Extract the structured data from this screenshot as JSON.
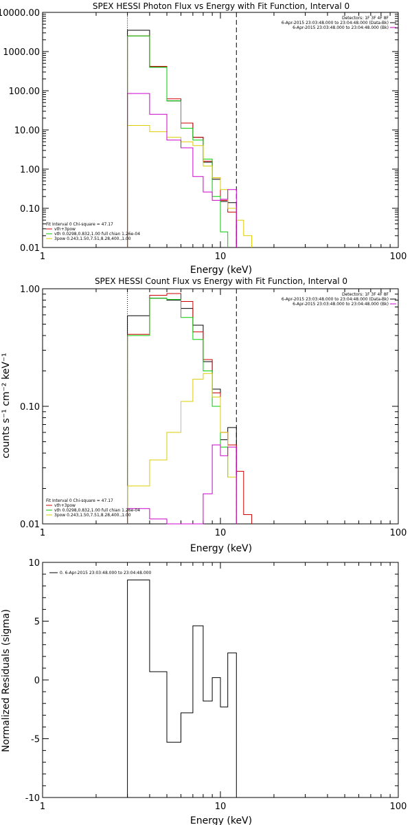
{
  "chart_data": [
    {
      "type": "line",
      "title": "SPEX HESSI Photon Flux vs Energy with Fit Function, Interval 0",
      "xlabel": "Energy (keV)",
      "ylabel": "",
      "xscale": "log",
      "yscale": "log",
      "xlim": [
        1,
        100
      ],
      "ylim": [
        0.01,
        10000
      ],
      "x_ticks": [
        "1",
        "10",
        "100"
      ],
      "y_ticks": [
        "0.01",
        "0.10",
        "1.00",
        "10.00",
        "100.00",
        "1000.00",
        "10000.00"
      ],
      "vlines": [
        {
          "x": 3,
          "style": "dotted"
        },
        {
          "x": 12.3,
          "style": "dashed"
        }
      ],
      "legend_top": [
        "Detectors: 1F 3F 4F 8F",
        "6-Apr-2015 23:03:48.000 to 23:04:48.000 (Data-Bk)",
        "6-Apr-2015 23:03:48.000 to 23:04:48.000 (Bk)"
      ],
      "legend_top_colors": [
        "#000000",
        "#000000",
        "#cc00cc"
      ],
      "legend_bottom": [
        "Fit Interval 0   Chi-square = 47.17",
        "vth+3pow",
        "vth 0.0298,0.832,1.00  full chian 1.26e-04",
        "3pow 0.243,1.50,7.51,8.28,400.,1.00"
      ],
      "legend_bottom_colors": [
        "",
        "#cc0000",
        "#00cc00",
        "#ddcc00"
      ],
      "series": [
        {
          "name": "6-Apr-2015 23:03:48.000 to 23:04:48.000 (Data-Bk)",
          "color": "#000000",
          "edges": [
            3,
            4,
            5,
            6,
            7,
            8,
            9,
            10,
            11,
            12.3
          ],
          "values": [
            3500,
            400,
            55,
            15,
            6.5,
            1.5,
            0.55,
            0.15,
            0.14
          ]
        },
        {
          "name": "vth+3pow",
          "color": "#cc0000",
          "edges": [
            3,
            4,
            5,
            6,
            7,
            8,
            9,
            10,
            11,
            12.3
          ],
          "values": [
            2500,
            420,
            62,
            15,
            6.5,
            1.6,
            0.6,
            0.16,
            0.08
          ]
        },
        {
          "name": "vth",
          "color": "#00cc00",
          "edges": [
            3,
            4,
            5,
            6,
            7,
            8,
            9,
            10,
            11
          ],
          "values": [
            2500,
            400,
            55,
            11,
            5.5,
            1.8,
            0.2,
            0.025
          ]
        },
        {
          "name": "3pow",
          "color": "#ddcc00",
          "edges": [
            3,
            4,
            5,
            6,
            7,
            8,
            9,
            10,
            11,
            12.3,
            13.5,
            15
          ],
          "values": [
            13,
            9,
            6.5,
            5,
            4,
            1.2,
            0.6,
            0.3,
            0.1,
            0.05,
            0.02
          ]
        },
        {
          "name": "6-Apr-2015 23:03:48.000 to 23:04:48.000 (Bk)",
          "color": "#cc00cc",
          "edges": [
            3,
            4,
            5,
            6,
            7,
            8,
            9,
            10,
            11,
            12.3
          ],
          "values": [
            85,
            25,
            5.5,
            3.5,
            0.65,
            0.26,
            0.16,
            0.17,
            0.3
          ]
        }
      ]
    },
    {
      "type": "line",
      "title": "SPEX HESSI Count Flux vs Energy with Fit Function, Interval 0",
      "xlabel": "Energy (keV)",
      "ylabel": "counts s⁻¹ cm⁻² keV⁻¹",
      "xscale": "log",
      "yscale": "log",
      "xlim": [
        1,
        100
      ],
      "ylim": [
        0.01,
        1.0
      ],
      "x_ticks": [
        "1",
        "10",
        "100"
      ],
      "y_ticks": [
        "0.01",
        "0.10",
        "1.00"
      ],
      "vlines": [
        {
          "x": 3,
          "style": "dotted"
        },
        {
          "x": 12.3,
          "style": "dashed"
        }
      ],
      "legend_top": [
        "Detectors: 1F 3F 4F 8F",
        "6-Apr-2015 23:03:48.000 to 23:04:48.000 (Data-Bk)",
        "6-Apr-2015 23:03:48.000 to 23:04:48.000 (Bk)"
      ],
      "legend_top_colors": [
        "#000000",
        "#000000",
        "#cc00cc"
      ],
      "legend_bottom": [
        "Fit Interval 0   Chi-square = 47.17",
        "vth+3pow",
        "vth 0.0298,0.832,1.00  full chian 1.26e-04",
        "3pow 0.243,1.50,7.51,8.28,400.,1.00"
      ],
      "legend_bottom_colors": [
        "",
        "#cc0000",
        "#00cc00",
        "#ddcc00"
      ],
      "series": [
        {
          "name": "6-Apr-2015 23:03:48.000 to 23:04:48.000 (Data-Bk)",
          "color": "#000000",
          "edges": [
            3,
            4,
            5,
            6,
            7,
            8,
            9,
            10,
            11,
            12.3
          ],
          "values": [
            0.59,
            0.83,
            0.8,
            0.68,
            0.49,
            0.24,
            0.14,
            0.052,
            0.066
          ]
        },
        {
          "name": "vth+3pow",
          "color": "#cc0000",
          "edges": [
            3,
            4,
            5,
            6,
            7,
            8,
            9,
            10,
            11,
            12.3,
            13.5,
            15
          ],
          "values": [
            0.41,
            0.88,
            0.91,
            0.78,
            0.43,
            0.25,
            0.13,
            0.06,
            0.047,
            0.028,
            0.012
          ]
        },
        {
          "name": "vth",
          "color": "#00cc00",
          "edges": [
            3,
            4,
            5,
            6,
            7,
            8,
            9,
            10,
            11,
            12.3
          ],
          "values": [
            0.4,
            0.83,
            0.81,
            0.57,
            0.37,
            0.2,
            0.1,
            0.045,
            0.025
          ]
        },
        {
          "name": "3pow",
          "color": "#ddcc00",
          "edges": [
            3,
            4,
            5,
            6,
            7,
            8,
            9,
            10,
            11,
            12.3
          ],
          "values": [
            0.021,
            0.035,
            0.06,
            0.11,
            0.17,
            0.19,
            0.12,
            0.06,
            0.025
          ]
        },
        {
          "name": "6-Apr-2015 23:03:48.000 to 23:04:48.000 (Bk)",
          "color": "#cc00cc",
          "edges": [
            3,
            4,
            5,
            6,
            7,
            8,
            9,
            10,
            11,
            12.3
          ],
          "values": [
            0.0135,
            0.011,
            0.0095,
            0.0095,
            0.009,
            0.018,
            0.047,
            0.038,
            0.045
          ]
        }
      ]
    },
    {
      "type": "line",
      "title": "",
      "xlabel": "Energy (keV)",
      "ylabel": "Normalized Residuals (sigma)",
      "xscale": "log",
      "yscale": "linear",
      "xlim": [
        1,
        100
      ],
      "ylim": [
        -10,
        10
      ],
      "x_ticks": [
        "1",
        "10",
        "100"
      ],
      "y_ticks": [
        "-10",
        "-5",
        "0",
        "5",
        "10"
      ],
      "legend_top": [
        "0. 6-Apr-2015 23:03:48.000 to 23:04:48.000"
      ],
      "series": [
        {
          "name": "0. 6-Apr-2015 23:03:48.000 to 23:04:48.000",
          "color": "#000000",
          "edges": [
            3,
            4,
            5,
            6,
            7,
            8,
            9,
            10,
            11,
            12.3
          ],
          "values": [
            8.5,
            0.7,
            -5.3,
            -2.8,
            4.6,
            -1.8,
            0.2,
            -2.3,
            2.3
          ]
        }
      ]
    }
  ]
}
